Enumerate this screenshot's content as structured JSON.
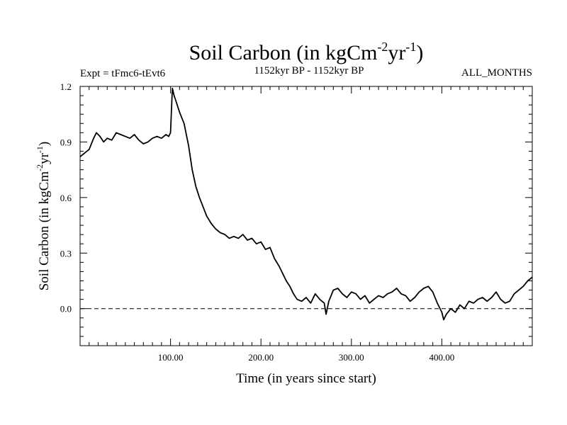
{
  "chart_data": {
    "type": "line",
    "title_main": "Soil Carbon (in kgCm",
    "title_exp1": "-2",
    "title_mid": "yr",
    "title_exp2": "-1",
    "title_close": ")",
    "subtitle_left": "Expt = tFmc6-tEvt6",
    "subtitle_center": "1152kyr BP - 1152kyr BP",
    "subtitle_right": "ALL_MONTHS",
    "xlabel": "Time (in years since start)",
    "ylabel_main": "Soil Carbon (in kgCm",
    "ylabel_exp1": "-2",
    "ylabel_mid": "yr",
    "ylabel_exp2": "-1",
    "ylabel_close": ")",
    "xlim": [
      0,
      500
    ],
    "ylim": [
      -0.2,
      1.2
    ],
    "x_ticks": [
      100,
      200,
      300,
      400
    ],
    "x_tick_labels": [
      "100.00",
      "200.00",
      "300.00",
      "400.00"
    ],
    "y_ticks": [
      0.0,
      0.3,
      0.6,
      0.9,
      1.2
    ],
    "y_tick_labels": [
      "0.0",
      "0.3",
      "0.6",
      "0.9",
      "1.2"
    ],
    "reference_line": {
      "y": 0.0,
      "style": "dashed"
    },
    "series": [
      {
        "name": "Soil Carbon",
        "x": [
          0,
          5,
          10,
          15,
          18,
          22,
          26,
          30,
          35,
          40,
          45,
          50,
          55,
          60,
          65,
          70,
          75,
          80,
          85,
          90,
          95,
          98,
          100,
          102,
          104,
          106,
          110,
          115,
          120,
          124,
          128,
          132,
          136,
          140,
          145,
          150,
          155,
          160,
          165,
          170,
          175,
          180,
          185,
          190,
          195,
          200,
          205,
          210,
          215,
          220,
          225,
          228,
          232,
          236,
          240,
          245,
          250,
          255,
          260,
          265,
          270,
          272,
          275,
          280,
          285,
          290,
          295,
          300,
          305,
          310,
          315,
          320,
          325,
          330,
          335,
          340,
          345,
          350,
          355,
          360,
          365,
          370,
          375,
          380,
          385,
          390,
          395,
          400,
          402,
          405,
          410,
          415,
          420,
          425,
          430,
          435,
          440,
          445,
          450,
          455,
          460,
          465,
          470,
          475,
          480,
          485,
          490,
          495,
          500
        ],
        "y": [
          0.82,
          0.84,
          0.86,
          0.92,
          0.95,
          0.93,
          0.9,
          0.92,
          0.91,
          0.95,
          0.94,
          0.93,
          0.92,
          0.94,
          0.91,
          0.89,
          0.9,
          0.92,
          0.93,
          0.92,
          0.94,
          0.93,
          0.95,
          1.19,
          1.15,
          1.12,
          1.06,
          1.0,
          0.88,
          0.75,
          0.66,
          0.6,
          0.55,
          0.5,
          0.46,
          0.43,
          0.41,
          0.4,
          0.38,
          0.39,
          0.38,
          0.4,
          0.37,
          0.38,
          0.35,
          0.36,
          0.32,
          0.33,
          0.27,
          0.23,
          0.18,
          0.15,
          0.12,
          0.08,
          0.05,
          0.04,
          0.06,
          0.03,
          0.08,
          0.05,
          0.03,
          -0.03,
          0.04,
          0.1,
          0.11,
          0.08,
          0.06,
          0.09,
          0.08,
          0.05,
          0.07,
          0.03,
          0.05,
          0.07,
          0.06,
          0.08,
          0.09,
          0.11,
          0.08,
          0.07,
          0.04,
          0.06,
          0.09,
          0.11,
          0.12,
          0.09,
          0.03,
          -0.02,
          -0.06,
          -0.03,
          0.0,
          -0.02,
          0.02,
          0.0,
          0.04,
          0.03,
          0.05,
          0.06,
          0.04,
          0.06,
          0.09,
          0.05,
          0.03,
          0.04,
          0.08,
          0.1,
          0.12,
          0.15,
          0.17
        ]
      }
    ]
  }
}
